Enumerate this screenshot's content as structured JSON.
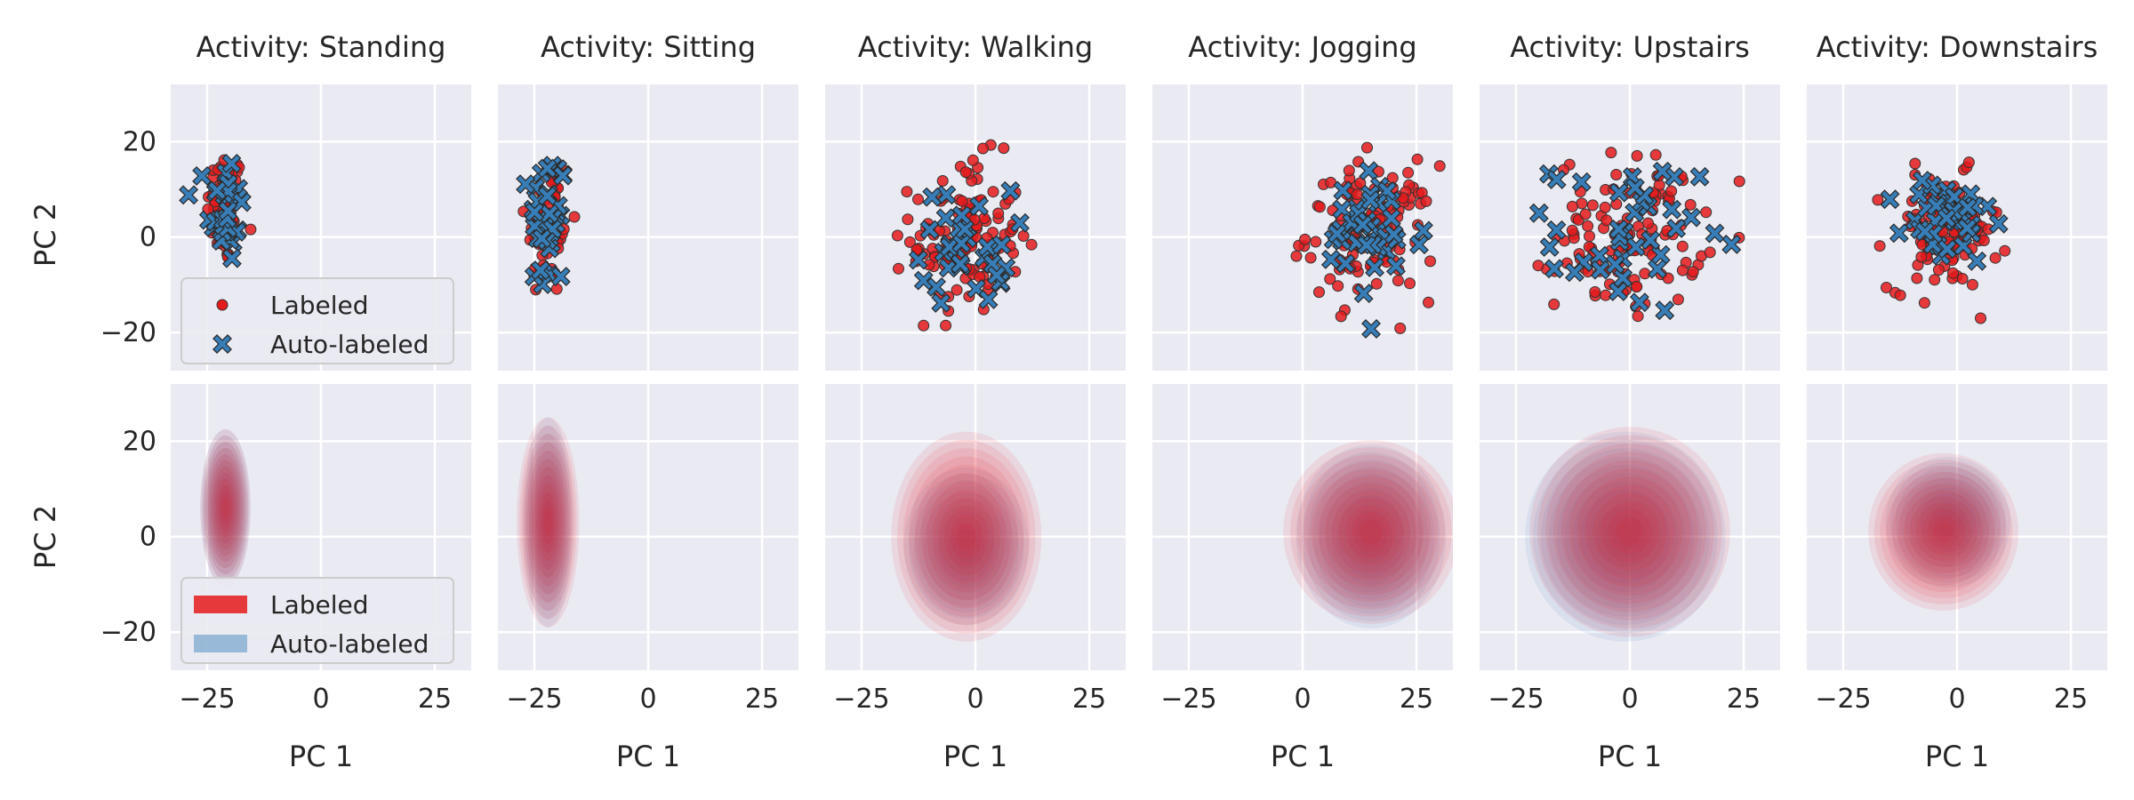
{
  "figure": {
    "row_labels": {
      "top": "PC 2",
      "bottom": "PC 2"
    },
    "x_label": "PC 1"
  },
  "chart_data": {
    "type": "scatter",
    "subplot_grid": {
      "rows": 2,
      "cols": 6,
      "sharex": true,
      "sharey": true
    },
    "xlim": [
      -33,
      33
    ],
    "ylim": [
      -28,
      32
    ],
    "x_ticks": [
      -25,
      0,
      25
    ],
    "y_ticks": [
      -20,
      0,
      20
    ],
    "x_tick_labels": [
      "−25",
      "0",
      "25"
    ],
    "y_tick_labels": [
      "−20",
      "0",
      "20"
    ],
    "grid": true,
    "series_style": {
      "Labeled": {
        "color": "#e41a1c",
        "marker": "circle"
      },
      "Auto-labeled": {
        "color": "#377eb8",
        "marker": "x"
      }
    },
    "rows": [
      {
        "kind": "scatter",
        "legend": {
          "placement": "lower-left",
          "entries": [
            "Labeled",
            "Auto-labeled"
          ]
        }
      },
      {
        "kind": "kde",
        "legend": {
          "placement": "lower-left",
          "entries": [
            "Labeled",
            "Auto-labeled"
          ]
        }
      }
    ],
    "panels": [
      {
        "title": "Activity: Standing",
        "labeled": {
          "cx": -21,
          "cy": 6,
          "sx": 2,
          "sy": 6,
          "n": 70
        },
        "auto": {
          "cx": -21,
          "cy": 6,
          "sx": 2,
          "sy": 6,
          "n": 30
        }
      },
      {
        "title": "Activity: Sitting",
        "labeled": {
          "cx": -22,
          "cy": 3,
          "sx": 2.5,
          "sy": 8,
          "n": 60
        },
        "auto": {
          "cx": -22,
          "cy": 3,
          "sx": 2,
          "sy": 8,
          "n": 40
        }
      },
      {
        "title": "Activity: Walking",
        "labeled": {
          "cx": -2,
          "cy": 0,
          "sx": 6,
          "sy": 8,
          "n": 120
        },
        "auto": {
          "cx": -2,
          "cy": -2,
          "sx": 5,
          "sy": 6,
          "n": 35
        }
      },
      {
        "title": "Activity: Jogging",
        "labeled": {
          "cx": 15,
          "cy": 1,
          "sx": 7,
          "sy": 7,
          "n": 120
        },
        "auto": {
          "cx": 15,
          "cy": 0,
          "sx": 6,
          "sy": 7,
          "n": 40
        }
      },
      {
        "title": "Activity: Upstairs",
        "labeled": {
          "cx": 0,
          "cy": 1,
          "sx": 8,
          "sy": 8,
          "n": 120
        },
        "auto": {
          "cx": -1,
          "cy": 0,
          "sx": 8,
          "sy": 8,
          "n": 40
        }
      },
      {
        "title": "Activity: Downstairs",
        "labeled": {
          "cx": -3,
          "cy": 1,
          "sx": 6,
          "sy": 6,
          "n": 120
        },
        "auto": {
          "cx": -2,
          "cy": 3,
          "sx": 5,
          "sy": 5,
          "n": 40
        }
      }
    ]
  }
}
